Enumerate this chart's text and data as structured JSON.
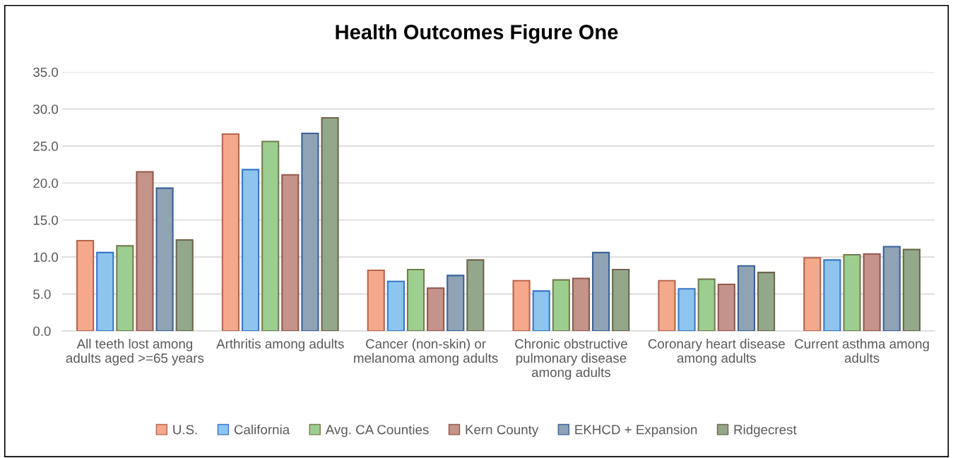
{
  "chart_data": {
    "type": "bar",
    "title": "Health Outcomes Figure One",
    "categories": [
      "All teeth lost among adults aged >=65 years",
      "Arthritis among adults",
      "Cancer (non-skin) or melanoma among adults",
      "Chronic obstructive pulmonary disease among adults",
      "Coronary heart disease among adults",
      "Current asthma among adults"
    ],
    "series": [
      {
        "name": "U.S.",
        "color": "#f4a98c",
        "values": [
          12.2,
          26.6,
          8.2,
          6.8,
          6.8,
          9.9
        ]
      },
      {
        "name": "California",
        "color": "#8ec5ee",
        "values": [
          10.6,
          21.8,
          6.7,
          5.4,
          5.7,
          9.6
        ]
      },
      {
        "name": "Avg. CA Counties",
        "color": "#9ccf8f",
        "values": [
          11.5,
          25.6,
          8.3,
          6.9,
          7.0,
          10.3
        ]
      },
      {
        "name": "Kern County",
        "color": "#c4938a",
        "values": [
          21.5,
          21.1,
          5.8,
          7.1,
          6.3,
          10.4
        ]
      },
      {
        "name": "EKHCD + Expansion",
        "color": "#8fa3b5",
        "values": [
          19.3,
          26.7,
          7.5,
          10.6,
          8.8,
          11.4
        ]
      },
      {
        "name": "Ridgecrest",
        "color": "#93a88b",
        "values": [
          12.3,
          28.8,
          9.6,
          8.3,
          7.9,
          11.0
        ]
      }
    ],
    "ylim": [
      0,
      35
    ],
    "yticks": [
      {
        "value": 0,
        "label": "0.0"
      },
      {
        "value": 5,
        "label": "5.0"
      },
      {
        "value": 10,
        "label": "10.0"
      },
      {
        "value": 15,
        "label": "15.0"
      },
      {
        "value": 20,
        "label": "20.0"
      },
      {
        "value": 25,
        "label": "25.0"
      },
      {
        "value": 30,
        "label": "30.0"
      },
      {
        "value": 35,
        "label": "35.0"
      }
    ],
    "grid": "y",
    "legend": "bottom"
  }
}
